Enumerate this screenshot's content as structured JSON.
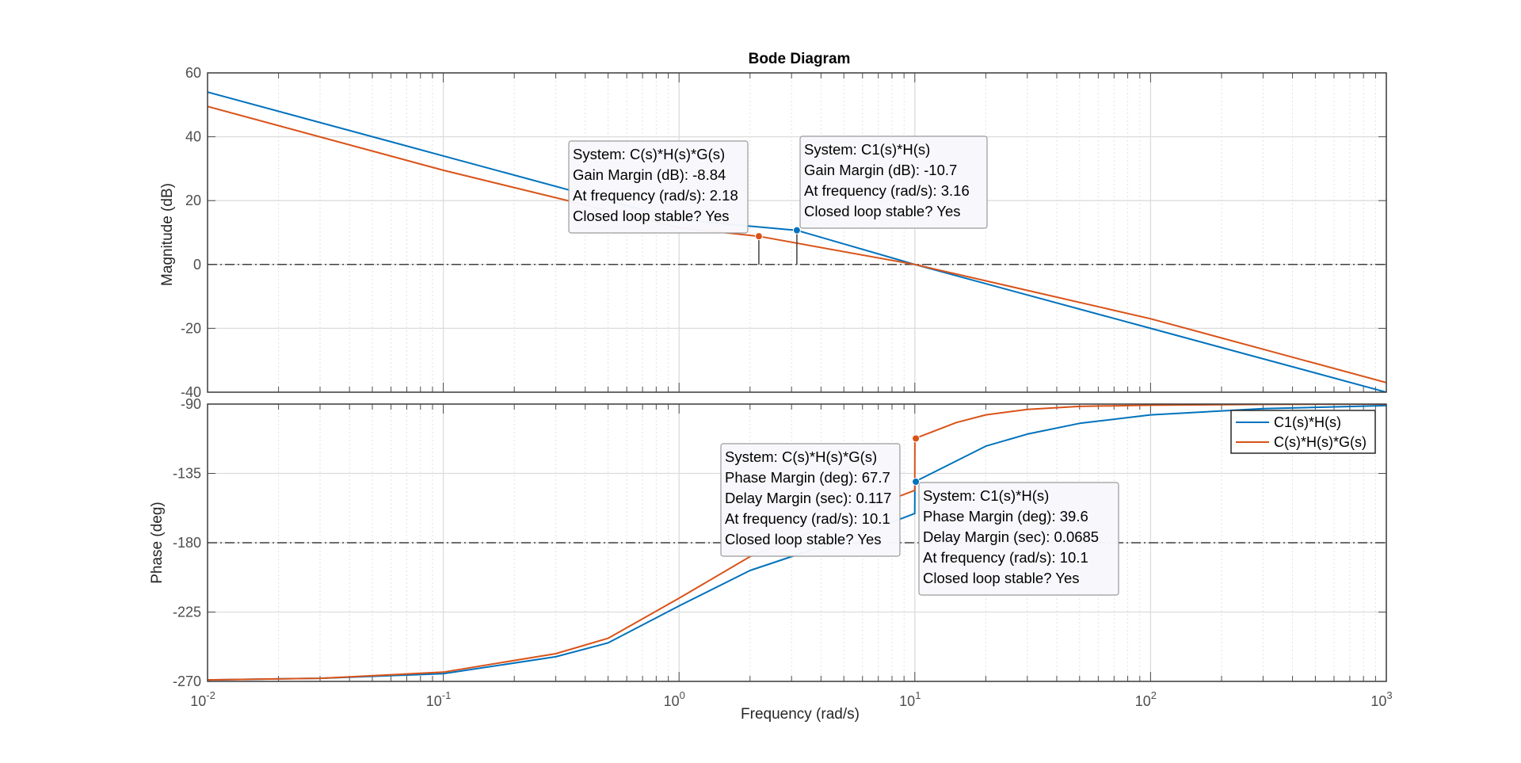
{
  "chart_data": {
    "type": "line",
    "title": "Bode Diagram",
    "xlabel": "Frequency  (rad/s)",
    "xscale": "log",
    "xlim": [
      0.01,
      1000
    ],
    "x_ticks": [
      {
        "value": 0.01,
        "base": "10",
        "exp": "-2"
      },
      {
        "value": 0.1,
        "base": "10",
        "exp": "-1"
      },
      {
        "value": 1,
        "base": "10",
        "exp": "0"
      },
      {
        "value": 10,
        "base": "10",
        "exp": "1"
      },
      {
        "value": 100,
        "base": "10",
        "exp": "2"
      },
      {
        "value": 1000,
        "base": "10",
        "exp": "3"
      }
    ],
    "grid": true,
    "legend_position": "top-right of phase plot",
    "colors": {
      "C1(s)*H(s)": "#0072bd",
      "C(s)*H(s)*G(s)": "#d95319"
    },
    "magnitude": {
      "ylabel": "Magnitude (dB)",
      "ylim": [
        -40,
        60
      ],
      "yticks": [
        -40,
        -20,
        0,
        20,
        40,
        60
      ],
      "ytick_labels": [
        "-40",
        "-20",
        "0",
        "20",
        "40",
        "60"
      ],
      "reference_line": 0,
      "series": [
        {
          "name": "C1(s)*H(s)",
          "x": [
            0.01,
            0.1,
            1,
            3.16,
            10,
            100,
            1000
          ],
          "y": [
            54,
            34,
            14,
            10.7,
            0,
            -20,
            -40
          ]
        },
        {
          "name": "C(s)*H(s)*G(s)",
          "x": [
            0.01,
            0.1,
            1,
            2.18,
            10,
            100,
            1000
          ],
          "y": [
            49.5,
            29.5,
            11.5,
            8.84,
            0,
            -17,
            -37
          ]
        }
      ]
    },
    "phase": {
      "ylabel": "Phase (deg)",
      "ylim": [
        -270,
        -90
      ],
      "yticks": [
        -270,
        -225,
        -180,
        -135,
        -90
      ],
      "ytick_labels": [
        "-270",
        "-225",
        "-180",
        "-135",
        "-90"
      ],
      "reference_line": -180,
      "series": [
        {
          "name": "C1(s)*H(s)",
          "x": [
            0.01,
            0.03,
            0.1,
            0.3,
            0.5,
            1,
            2,
            3,
            5,
            7,
            9.99,
            10.01,
            20,
            30,
            50,
            100,
            300,
            1000
          ],
          "y": [
            -269,
            -268,
            -265,
            -254,
            -245,
            -221,
            -198,
            -189,
            -178,
            -170,
            -161,
            -140.4,
            -117.3,
            -109.5,
            -102.5,
            -97,
            -93,
            -91
          ]
        },
        {
          "name": "C(s)*H(s)*G(s)",
          "x": [
            0.01,
            0.03,
            0.1,
            0.3,
            0.5,
            1,
            2,
            3,
            5,
            7,
            9.99,
            10.01,
            15,
            20,
            30,
            50,
            100,
            300,
            1000
          ],
          "y": [
            -269,
            -268,
            -264,
            -252,
            -242,
            -216,
            -189,
            -178,
            -165,
            -155,
            -146,
            -112.3,
            -102,
            -97,
            -93.5,
            -91.5,
            -90.7,
            -90.2,
            -90
          ]
        }
      ]
    },
    "annotations": [
      {
        "plot": "magnitude",
        "series": "C(s)*H(s)*G(s)",
        "x": 2.18,
        "y": 8.84,
        "lines": [
          "System: C(s)*H(s)*G(s)",
          "Gain Margin (dB): -8.84",
          "At frequency (rad/s): 2.18",
          "Closed loop stable? Yes"
        ]
      },
      {
        "plot": "magnitude",
        "series": "C1(s)*H(s)",
        "x": 3.16,
        "y": 10.7,
        "lines": [
          "System: C1(s)*H(s)",
          "Gain Margin (dB): -10.7",
          "At frequency (rad/s): 3.16",
          "Closed loop stable? Yes"
        ]
      },
      {
        "plot": "phase",
        "series": "C(s)*H(s)*G(s)",
        "x": 10.1,
        "y": -112.3,
        "lines": [
          "System: C(s)*H(s)*G(s)",
          "Phase Margin (deg): 67.7",
          "Delay Margin (sec): 0.117",
          "At frequency (rad/s): 10.1",
          "Closed loop stable? Yes"
        ]
      },
      {
        "plot": "phase",
        "series": "C1(s)*H(s)",
        "x": 10.1,
        "y": -140.4,
        "lines": [
          "System: C1(s)*H(s)",
          "Phase Margin (deg): 39.6",
          "Delay Margin (sec): 0.0685",
          "At frequency (rad/s): 10.1",
          "Closed loop stable? Yes"
        ]
      }
    ],
    "legend": [
      "C1(s)*H(s)",
      "C(s)*H(s)*G(s)"
    ]
  }
}
